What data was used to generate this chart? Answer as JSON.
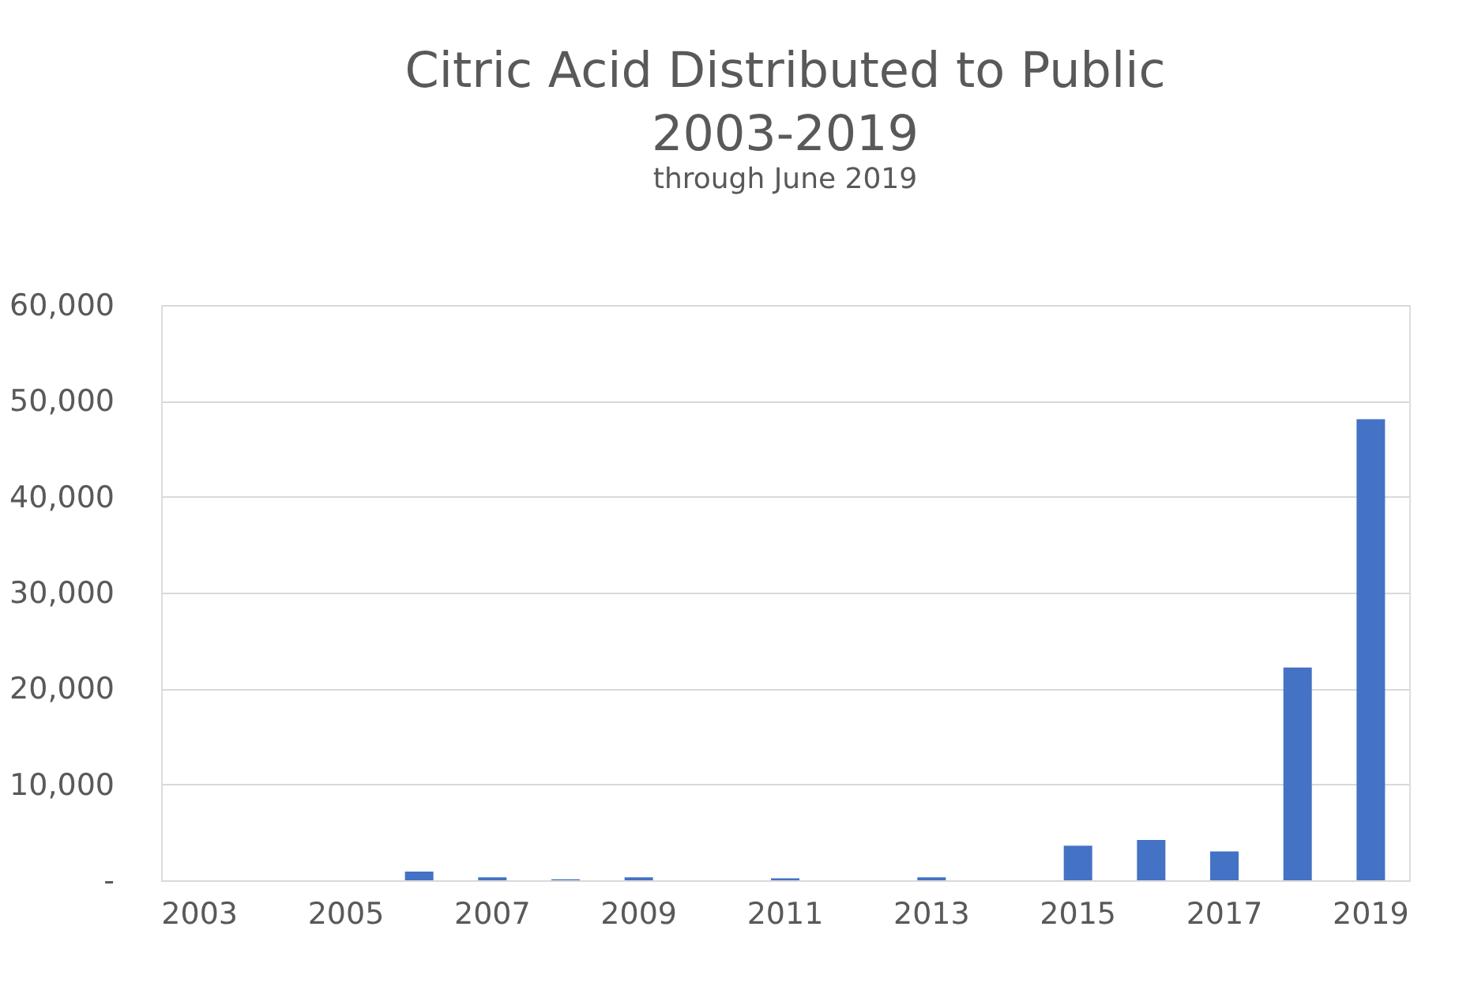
{
  "chart_data": {
    "type": "bar",
    "title": "Citric Acid Distributed to Public\n2003-2019",
    "subtitle": "through June 2019",
    "categories": [
      "2003",
      null,
      "2005",
      null,
      "2007",
      null,
      "2009",
      null,
      "2011",
      null,
      "2013",
      null,
      "2015",
      null,
      "2017",
      null,
      "2019"
    ],
    "values": [
      0,
      0,
      0,
      900,
      300,
      100,
      300,
      0,
      200,
      0,
      300,
      0,
      3600,
      4200,
      3000,
      22200,
      48100
    ],
    "color": "#4472c4",
    "ylim": [
      0,
      60000
    ],
    "yticks": [
      {
        "value": 0,
        "label": "-"
      },
      {
        "value": 10000,
        "label": "10,000"
      },
      {
        "value": 20000,
        "label": "20,000"
      },
      {
        "value": 30000,
        "label": "30,000"
      },
      {
        "value": 40000,
        "label": "40,000"
      },
      {
        "value": 50000,
        "label": "50,000"
      },
      {
        "value": 60000,
        "label": "60,000"
      }
    ],
    "grid": "y"
  }
}
